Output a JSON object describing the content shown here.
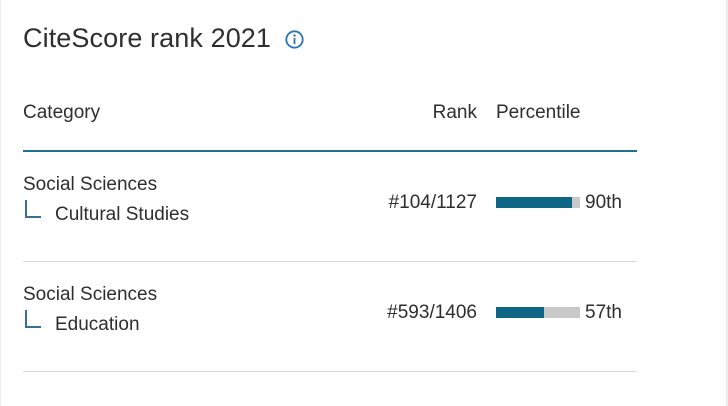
{
  "title": "CiteScore rank 2021",
  "info_icon": "info-icon",
  "accent_color": "#0f6584",
  "table": {
    "headers": {
      "category": "Category",
      "rank": "Rank",
      "percentile": "Percentile"
    },
    "rows": [
      {
        "parent_category": "Social Sciences",
        "subcategory": "Cultural Studies",
        "rank": "#104/1127",
        "percentile_label": "90th",
        "percentile_value": 90
      },
      {
        "parent_category": "Social Sciences",
        "subcategory": "Education",
        "rank": "#593/1406",
        "percentile_label": "57th",
        "percentile_value": 57
      }
    ]
  }
}
